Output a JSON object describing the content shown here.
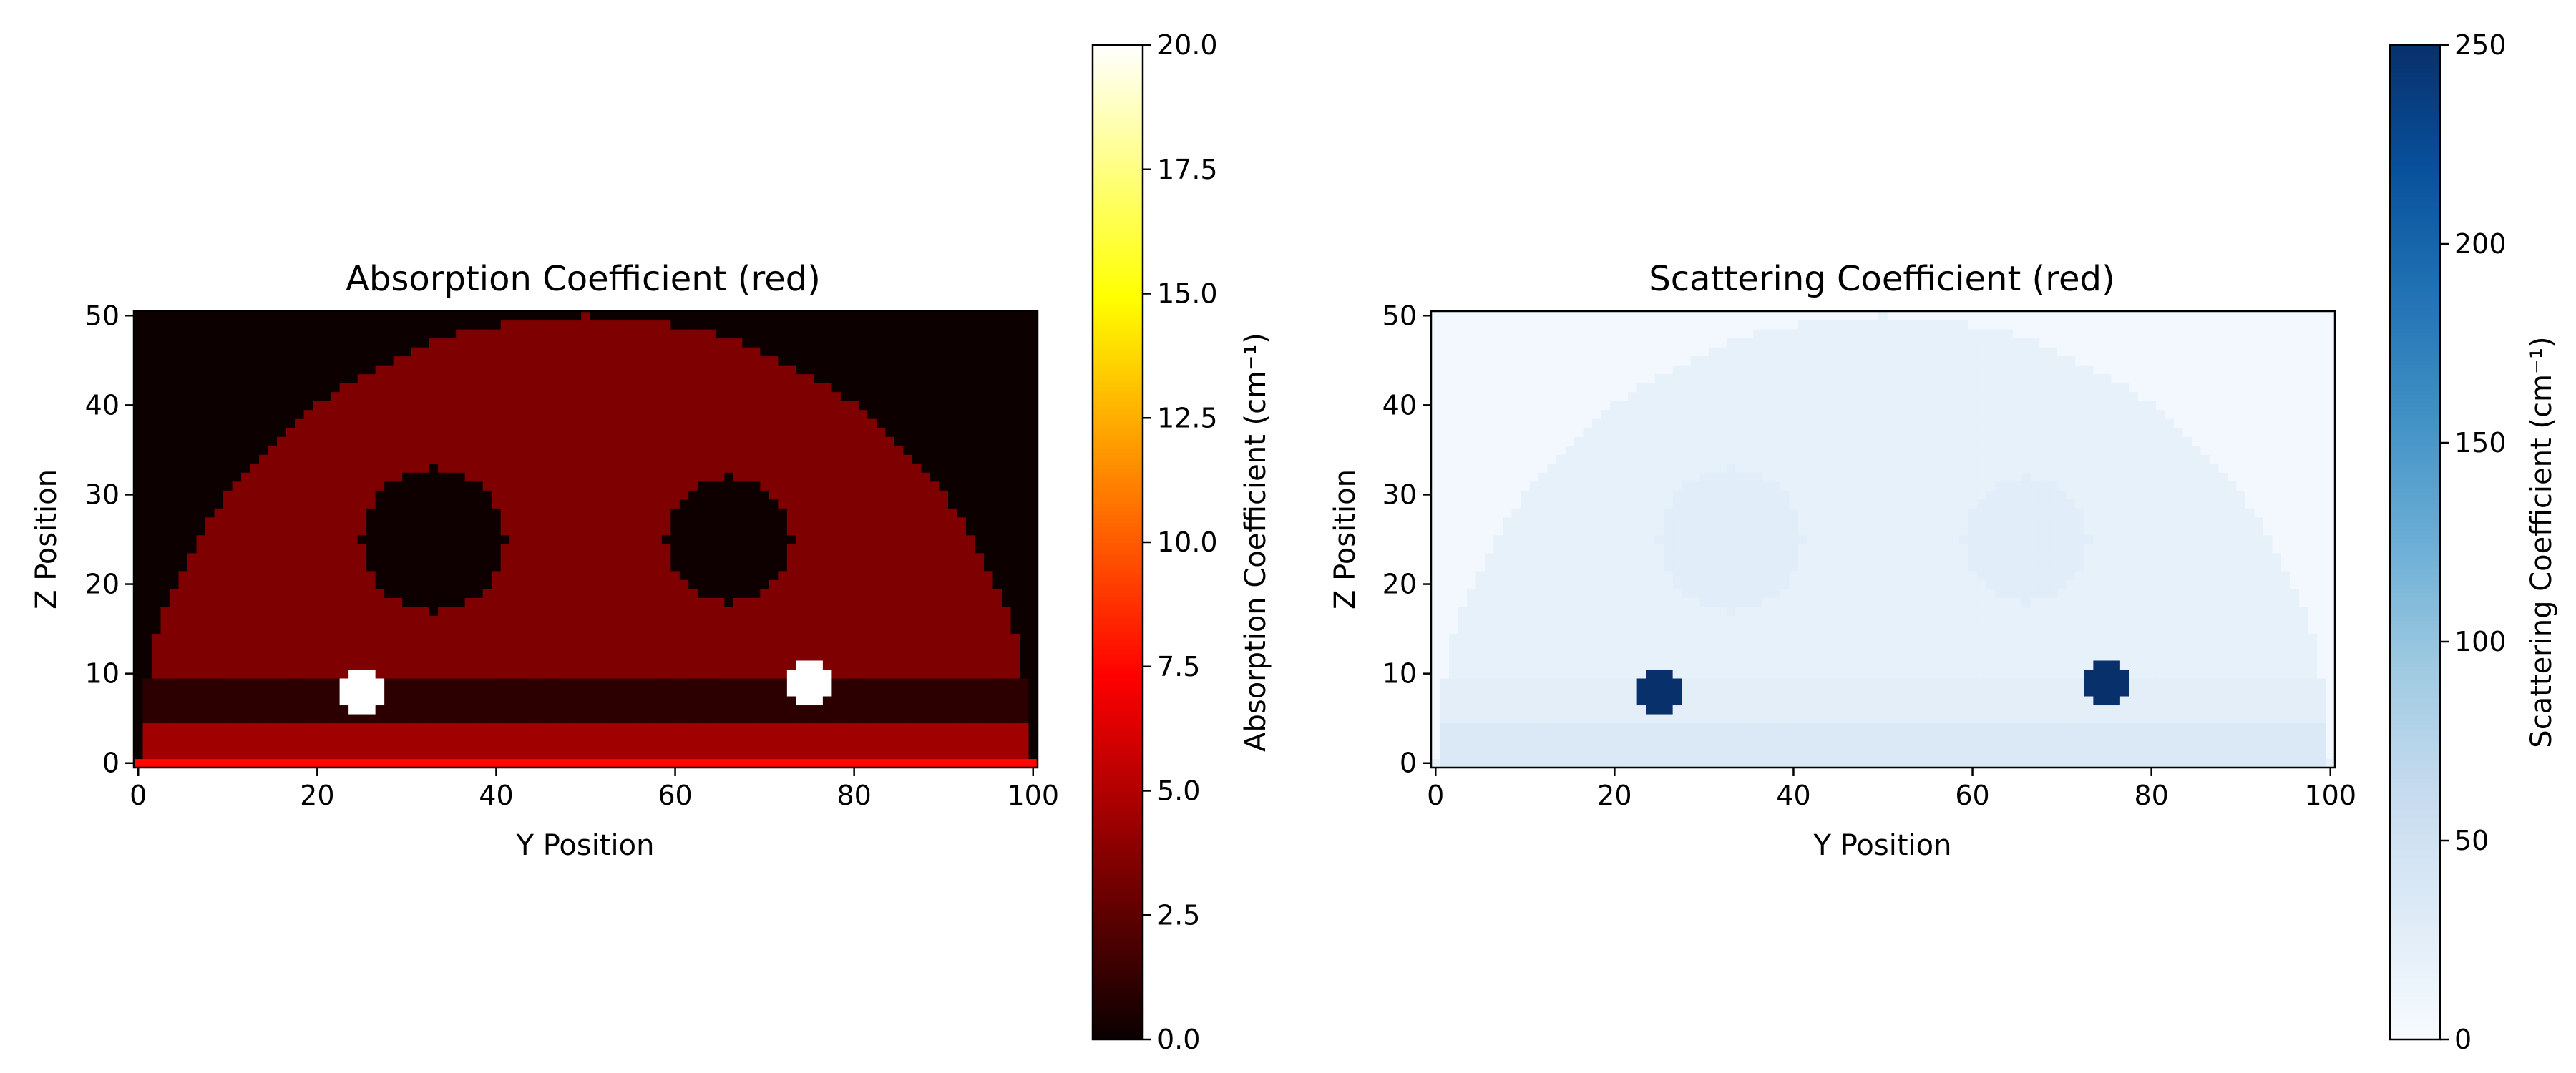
{
  "chart_data": [
    {
      "type": "heatmap",
      "title": "Absorption Coefficient (red)",
      "xlabel": "Y Position",
      "ylabel": "Z Position",
      "xlim": [
        -0.5,
        100.5
      ],
      "ylim": [
        -0.5,
        50.5
      ],
      "xticks": [
        0,
        20,
        40,
        60,
        80,
        100
      ],
      "yticks": [
        0,
        10,
        20,
        30,
        40,
        50
      ],
      "grid": false,
      "colormap": "hot",
      "colorbar": {
        "label": "Absorption Coefficient (cm⁻¹)",
        "min": 0.0,
        "max": 20.0,
        "ticks": [
          "0.0",
          "2.5",
          "5.0",
          "7.5",
          "10.0",
          "12.5",
          "15.0",
          "17.5",
          "20.0"
        ]
      },
      "regions": [
        {
          "name": "background",
          "value": 0.1
        },
        {
          "name": "tissue-half-disk",
          "shape": "half-disk",
          "center_y": 50,
          "base_z": 0,
          "radius": 50,
          "value": 3.5
        },
        {
          "name": "lower-layer",
          "shape": "band",
          "z_min": 5,
          "z_max": 10,
          "y_min": 1,
          "y_max": 99,
          "value": 1.0
        },
        {
          "name": "bottom-layer",
          "shape": "band",
          "z_min": 0.5,
          "z_max": 5,
          "y_min": 1,
          "y_max": 99,
          "value": 4.5
        },
        {
          "name": "surface-layer",
          "shape": "band",
          "z_min": -0.5,
          "z_max": 0.5,
          "y_min": -0.5,
          "y_max": 100.5,
          "value": 7.5
        },
        {
          "name": "left-void",
          "shape": "disk",
          "center_y": 33,
          "center_z": 25,
          "radius": 8,
          "value": 0.15
        },
        {
          "name": "right-void",
          "shape": "disk",
          "center_y": 66,
          "center_z": 25,
          "radius": 7,
          "value": 0.15
        },
        {
          "name": "left-inclusion",
          "shape": "disk",
          "center_y": 25,
          "center_z": 8,
          "radius": 2.5,
          "value": 20.0
        },
        {
          "name": "right-inclusion",
          "shape": "disk",
          "center_y": 75,
          "center_z": 9,
          "radius": 2.5,
          "value": 20.0
        }
      ]
    },
    {
      "type": "heatmap",
      "title": "Scattering Coefficient (red)",
      "xlabel": "Y Position",
      "ylabel": "Z Position",
      "xlim": [
        -0.5,
        100.5
      ],
      "ylim": [
        -0.5,
        50.5
      ],
      "xticks": [
        0,
        20,
        40,
        60,
        80,
        100
      ],
      "yticks": [
        0,
        10,
        20,
        30,
        40,
        50
      ],
      "grid": false,
      "colormap": "Blues",
      "colorbar": {
        "label": "Scattering Coefficient (cm⁻¹)",
        "min": 0,
        "max": 250,
        "ticks": [
          "0",
          "50",
          "100",
          "150",
          "200",
          "250"
        ]
      },
      "regions": [
        {
          "name": "background",
          "value": 5
        },
        {
          "name": "tissue-half-disk",
          "shape": "half-disk",
          "center_y": 50,
          "base_z": 0,
          "radius": 50,
          "value": 20
        },
        {
          "name": "lower-layer",
          "shape": "band",
          "z_min": 5,
          "z_max": 10,
          "y_min": 1,
          "y_max": 99,
          "value": 25
        },
        {
          "name": "bottom-layer",
          "shape": "band",
          "z_min": -0.5,
          "z_max": 5,
          "y_min": 1,
          "y_max": 99,
          "value": 35
        },
        {
          "name": "left-void",
          "shape": "disk",
          "center_y": 33,
          "center_z": 25,
          "radius": 8,
          "value": 27
        },
        {
          "name": "right-void",
          "shape": "disk",
          "center_y": 66,
          "center_z": 25,
          "radius": 7,
          "value": 27
        },
        {
          "name": "left-inclusion",
          "shape": "disk",
          "center_y": 25,
          "center_z": 8,
          "radius": 2.5,
          "value": 250
        },
        {
          "name": "right-inclusion",
          "shape": "disk",
          "center_y": 75,
          "center_z": 9,
          "radius": 2.5,
          "value": 250
        }
      ]
    }
  ]
}
